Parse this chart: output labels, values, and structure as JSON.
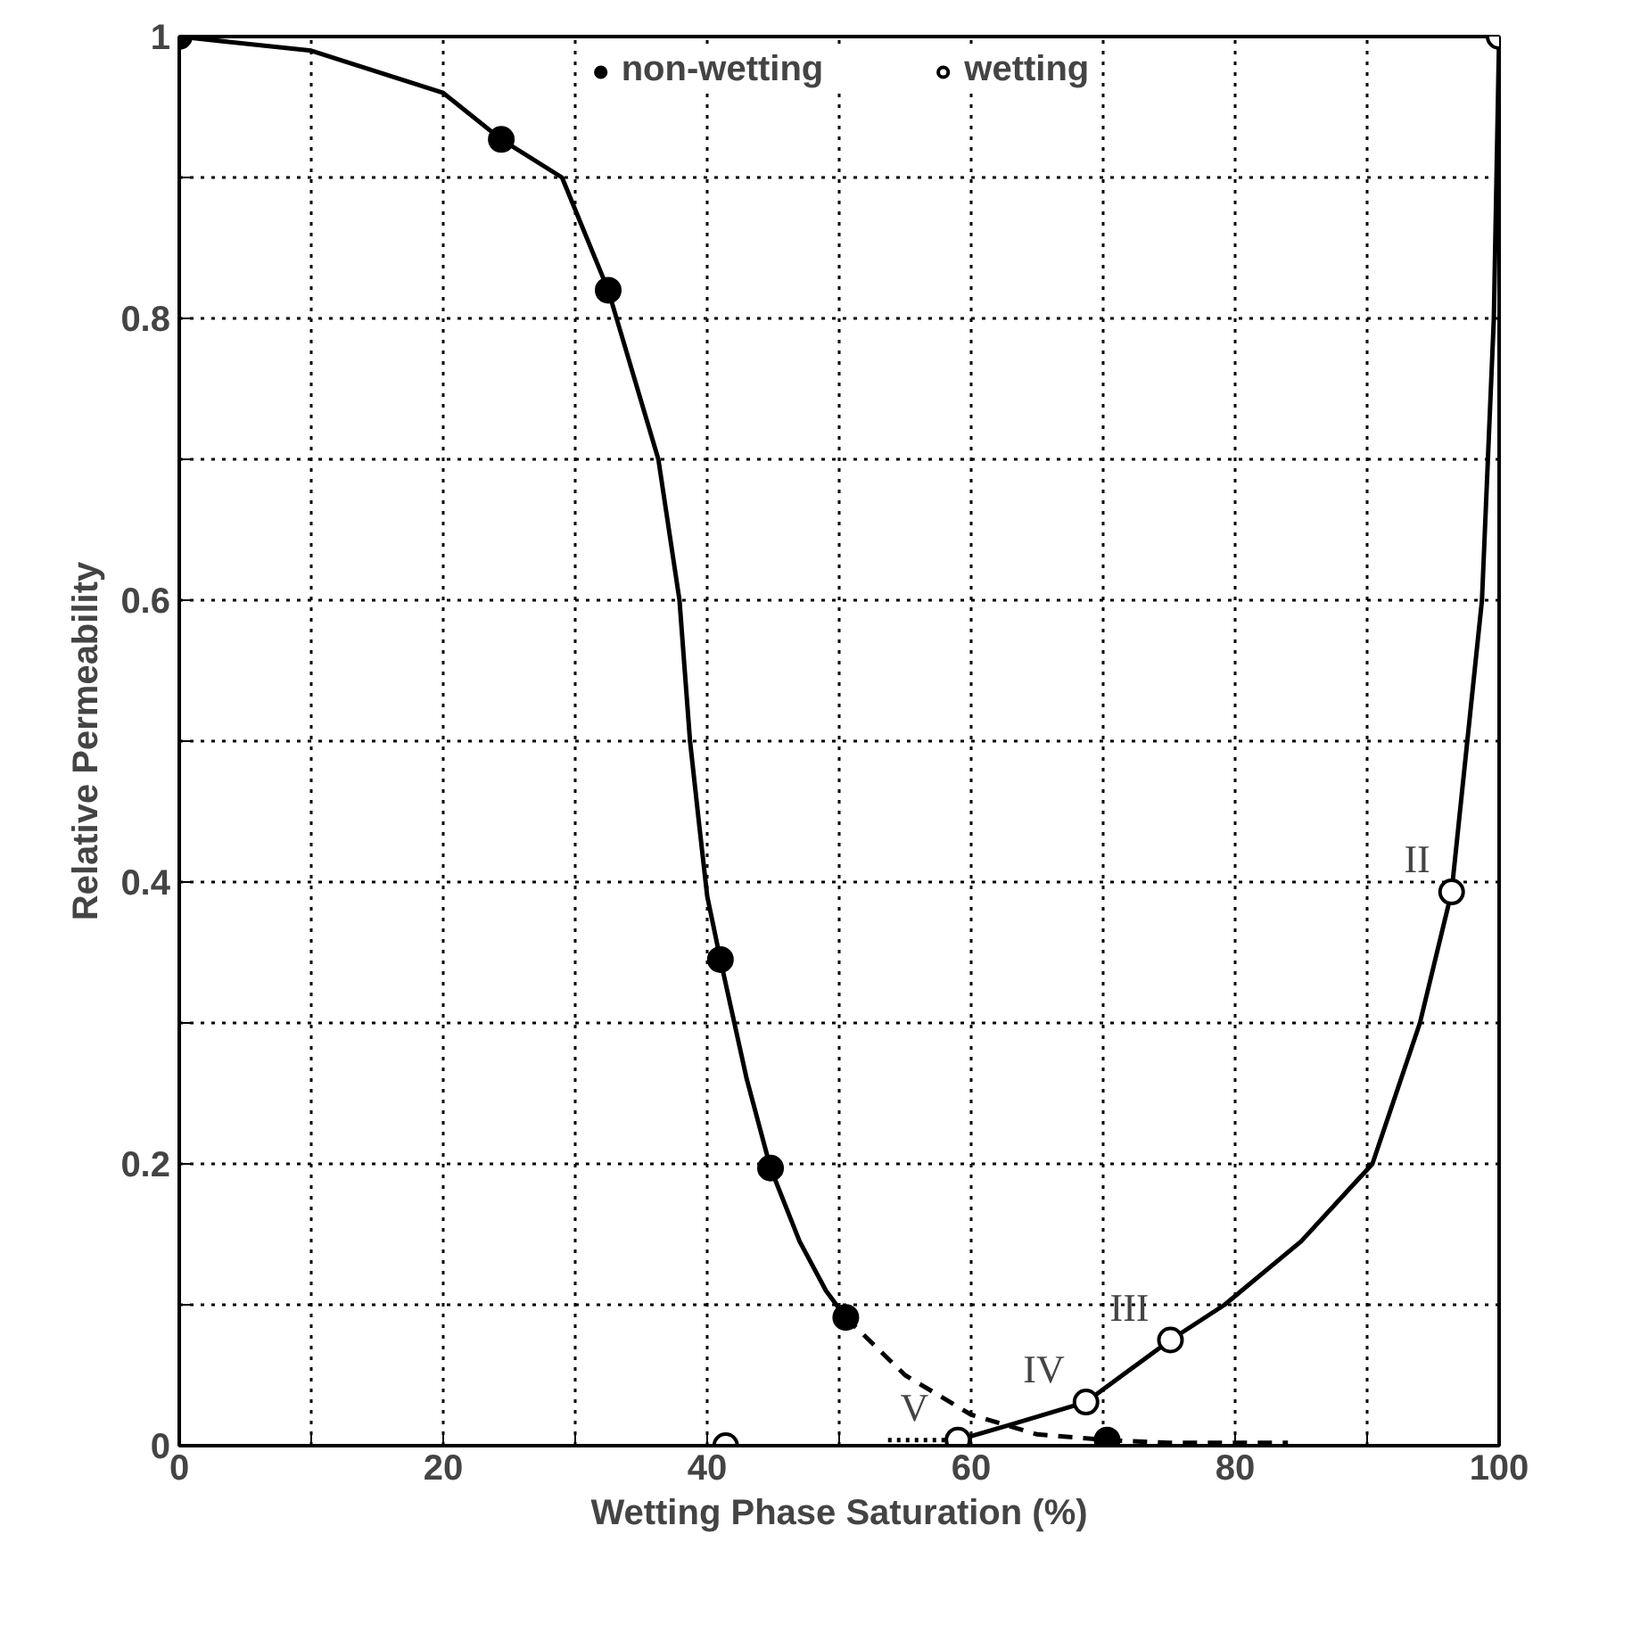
{
  "chart_data": {
    "type": "scatter",
    "xlabel": "Wetting Phase Saturation (%)",
    "ylabel": "Relative Permeability",
    "xlim": [
      0,
      100
    ],
    "ylim": [
      0,
      1
    ],
    "xticks": [
      0,
      {
        "value": 10,
        "label": null
      },
      20,
      {
        "value": 30,
        "label": null
      },
      40,
      {
        "value": 50,
        "label": null
      },
      60,
      {
        "value": 70,
        "label": null
      },
      80,
      {
        "value": 90,
        "label": null
      },
      100
    ],
    "yticks": [
      0,
      {
        "value": 0.1,
        "label": null
      },
      0.2,
      {
        "value": 0.3,
        "label": null
      },
      0.4,
      {
        "value": 0.5,
        "label": null
      },
      0.6,
      {
        "value": 0.7,
        "label": null
      },
      0.8,
      {
        "value": 0.9,
        "label": null
      },
      1
    ],
    "grid": true,
    "legend": "top",
    "series": [
      {
        "type": "line",
        "color": "#000000",
        "line_style": "solid",
        "marker": "none",
        "x": [
          0,
          10,
          20,
          24.4,
          29,
          32.5,
          36.3,
          37.9,
          38.7,
          39.4,
          40,
          41,
          43,
          44.8,
          47,
          49,
          50.5
        ],
        "values": [
          1,
          0.99,
          0.96,
          0.927,
          0.9,
          0.82,
          0.7,
          0.6,
          0.5,
          0.44,
          0.39,
          0.345,
          0.26,
          0.197,
          0.145,
          0.11,
          0.091
        ]
      },
      {
        "type": "line",
        "color": "#000000",
        "line_style": "dashed",
        "marker": "none",
        "x": [
          50.5,
          55,
          60,
          65,
          70.3,
          75,
          84
        ],
        "values": [
          0.091,
          0.05,
          0.022,
          0.008,
          0.004,
          0.002,
          0.002
        ]
      },
      {
        "type": "line",
        "color": "#000000",
        "line_style": "dotted",
        "marker": "none",
        "x": [
          53.7,
          58.4
        ],
        "values": [
          0.004,
          0.004
        ]
      },
      {
        "type": "line",
        "color": "#000000",
        "line_style": "solid",
        "marker": "none",
        "x": [
          59,
          63,
          68.7,
          75.1,
          79.2,
          85,
          90.4,
          94,
          96.4,
          98.7,
          99.6,
          100
        ],
        "values": [
          0.004,
          0.015,
          0.031,
          0.075,
          0.1,
          0.145,
          0.2,
          0.3,
          0.393,
          0.6,
          0.8,
          1
        ]
      },
      {
        "name": "non-wetting",
        "color": "#000000",
        "marker": "circle",
        "x": [
          0,
          24.4,
          32.5,
          41,
          44.8,
          50.5,
          70.3
        ],
        "values": [
          1,
          0.927,
          0.82,
          0.345,
          0.197,
          0.091,
          0.004
        ]
      },
      {
        "name": "wetting",
        "color": "#000000",
        "marker": "circle_open",
        "x": [
          41.4,
          59,
          68.7,
          75.1,
          96.4,
          100
        ],
        "values": [
          0,
          0.004,
          0.031,
          0.075,
          0.393,
          1
        ]
      }
    ],
    "annotations": [
      {
        "text": "II",
        "x": 96.4,
        "y": 0.393
      },
      {
        "text": "III",
        "x": 75.1,
        "y": 0.075
      },
      {
        "text": "IV",
        "x": 68.7,
        "y": 0.031
      },
      {
        "text": "V",
        "x": 58.4,
        "y": 0.004
      }
    ]
  }
}
